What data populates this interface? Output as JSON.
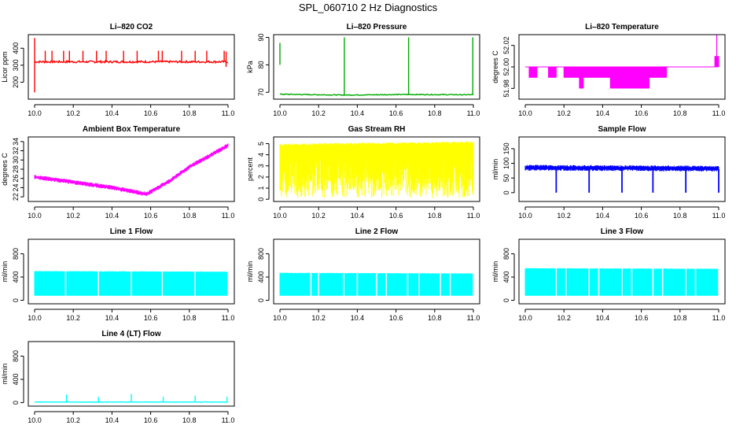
{
  "figure_title": "SPL_060710  2 Hz Diagnostics",
  "chart_data": [
    {
      "type": "line",
      "title": "Li–820 CO2",
      "ylabel": "Licor ppm",
      "color": "#ff0000",
      "xlim": [
        10.0,
        11.0
      ],
      "ylim": [
        100,
        480
      ],
      "xticks": [
        "10.0",
        "10.2",
        "10.4",
        "10.6",
        "10.8",
        "11.0"
      ],
      "yticks": [
        {
          "v": 200,
          "label": "200"
        },
        {
          "v": 300,
          "label": "300"
        },
        {
          "v": 400,
          "label": "400"
        }
      ],
      "series": [
        {
          "name": "CO2",
          "style": "noisy",
          "base": [
            [
              10.0,
              320
            ],
            [
              11.0,
              320
            ]
          ],
          "noise": 6,
          "spikes": [
            [
              10.0,
              460,
              140
            ],
            [
              10.055,
              385,
              320
            ],
            [
              10.09,
              385,
              320
            ],
            [
              10.15,
              385,
              320
            ],
            [
              10.18,
              385,
              320
            ],
            [
              10.25,
              385,
              320
            ],
            [
              10.32,
              385,
              320
            ],
            [
              10.37,
              385,
              320
            ],
            [
              10.46,
              385,
              320
            ],
            [
              10.53,
              385,
              320
            ],
            [
              10.64,
              385,
              320
            ],
            [
              10.66,
              385,
              320
            ],
            [
              10.76,
              385,
              320
            ],
            [
              10.83,
              385,
              320
            ],
            [
              10.89,
              385,
              320
            ],
            [
              10.98,
              385,
              320
            ],
            [
              10.99,
              380,
              290
            ]
          ]
        }
      ]
    },
    {
      "type": "line",
      "title": "Li–820 Pressure",
      "ylabel": "kPa",
      "color": "#00aa00",
      "xlim": [
        10.0,
        11.0
      ],
      "ylim": [
        67.5,
        91
      ],
      "xticks": [
        "10.0",
        "10.2",
        "10.4",
        "10.6",
        "10.8",
        "11.0"
      ],
      "yticks": [
        {
          "v": 70,
          "label": "70"
        },
        {
          "v": 80,
          "label": "80"
        },
        {
          "v": 90,
          "label": "90"
        }
      ],
      "series": [
        {
          "name": "Pressure",
          "style": "noisy",
          "base": [
            [
              10.0,
              69.3
            ],
            [
              10.33,
              69.0
            ],
            [
              10.66,
              69.2
            ],
            [
              11.0,
              69.1
            ]
          ],
          "noise": 0.15,
          "spikes": [
            [
              10.0,
              88,
              80
            ],
            [
              10.333,
              90,
              69
            ],
            [
              10.665,
              90,
              69
            ],
            [
              10.997,
              90,
              69
            ]
          ]
        }
      ]
    },
    {
      "type": "line",
      "title": "Li–820 Temperature",
      "ylabel": "degrees C",
      "color": "#ff00ff",
      "xlim": [
        10.0,
        11.0
      ],
      "ylim": [
        51.97,
        52.03
      ],
      "xticks": [
        "10.0",
        "10.2",
        "10.4",
        "10.6",
        "10.8",
        "11.0"
      ],
      "yticks": [
        {
          "v": 51.98,
          "label": "51.98"
        },
        {
          "v": 52.0,
          "label": "52.00"
        },
        {
          "v": 52.02,
          "label": "52.02"
        }
      ],
      "series": [
        {
          "name": "Temperature",
          "style": "steps",
          "base": [
            [
              10.0,
              52.0
            ],
            [
              11.0,
              52.0
            ]
          ],
          "bands": [
            [
              10.02,
              10.06,
              51.99
            ],
            [
              10.12,
              10.16,
              51.99
            ],
            [
              10.2,
              10.28,
              51.99
            ],
            [
              10.28,
              10.3,
              51.98
            ],
            [
              10.3,
              10.6,
              51.99
            ],
            [
              10.44,
              10.64,
              51.98
            ],
            [
              10.6,
              10.73,
              51.99
            ],
            [
              10.98,
              11.0,
              52.01
            ]
          ],
          "spikes": [
            [
              10.99,
              52.03,
              52.0
            ]
          ]
        }
      ]
    },
    {
      "type": "line",
      "title": "Ambient Box Temperature",
      "ylabel": "degrees C",
      "color": "#ff00ff",
      "xlim": [
        10.0,
        11.0
      ],
      "ylim": [
        21,
        35
      ],
      "xticks": [
        "10.0",
        "10.2",
        "10.4",
        "10.6",
        "10.8",
        "11.0"
      ],
      "yticks": [
        {
          "v": 22,
          "label": "22"
        },
        {
          "v": 24,
          "label": "24"
        },
        {
          "v": 26,
          "label": "26"
        },
        {
          "v": 28,
          "label": "28"
        },
        {
          "v": 30,
          "label": "30"
        },
        {
          "v": 32,
          "label": "32"
        },
        {
          "v": 34,
          "label": "34"
        }
      ],
      "series": [
        {
          "name": "Box Temp",
          "style": "band",
          "base": [
            [
              10.0,
              26.3
            ],
            [
              10.2,
              25.2
            ],
            [
              10.4,
              24.0
            ],
            [
              10.58,
              22.6
            ],
            [
              10.7,
              25.5
            ],
            [
              10.8,
              28.5
            ],
            [
              10.9,
              30.8
            ],
            [
              11.0,
              33.2
            ]
          ],
          "upper": 0.5,
          "lower": 0.5,
          "spikes": []
        }
      ]
    },
    {
      "type": "line",
      "title": "Gas Stream RH",
      "ylabel": "percent",
      "color": "#ffff00",
      "xlim": [
        10.0,
        11.0
      ],
      "ylim": [
        -0.2,
        5.6
      ],
      "xticks": [
        "10.0",
        "10.2",
        "10.4",
        "10.6",
        "10.8",
        "11.0"
      ],
      "yticks": [
        {
          "v": 0,
          "label": "0"
        },
        {
          "v": 1,
          "label": "1"
        },
        {
          "v": 2,
          "label": "2"
        },
        {
          "v": 3,
          "label": "3"
        },
        {
          "v": 4,
          "label": "4"
        },
        {
          "v": 5,
          "label": "5"
        }
      ],
      "series": [
        {
          "name": "RH",
          "style": "hash",
          "base": [
            [
              10.0,
              4.9
            ],
            [
              11.0,
              5.1
            ]
          ],
          "low": 0.8,
          "spikes": []
        }
      ]
    },
    {
      "type": "line",
      "title": "Sample Flow",
      "ylabel": "ml/min",
      "color": "#0000ff",
      "xlim": [
        10.0,
        11.0
      ],
      "ylim": [
        -30,
        190
      ],
      "xticks": [
        "10.0",
        "10.2",
        "10.4",
        "10.6",
        "10.8",
        "11.0"
      ],
      "yticks": [
        {
          "v": 0,
          "label": "0"
        },
        {
          "v": 50,
          "label": "50"
        },
        {
          "v": 100,
          "label": "100"
        },
        {
          "v": 150,
          "label": "150"
        }
      ],
      "series": [
        {
          "name": "Sample Flow",
          "style": "band",
          "base": [
            [
              10.0,
              85
            ],
            [
              11.0,
              82
            ]
          ],
          "upper": 10,
          "lower": 10,
          "spikes": [
            [
              10.16,
              80,
              0
            ],
            [
              10.33,
              80,
              0
            ],
            [
              10.5,
              80,
              0
            ],
            [
              10.66,
              80,
              0
            ],
            [
              10.83,
              80,
              0
            ],
            [
              11.0,
              80,
              0
            ]
          ]
        }
      ]
    },
    {
      "type": "line",
      "title": "Line 1 Flow",
      "ylabel": "ml/min",
      "color": "#00ffff",
      "xlim": [
        10.0,
        11.0
      ],
      "ylim": [
        -60,
        1050
      ],
      "xticks": [
        "10.0",
        "10.2",
        "10.4",
        "10.6",
        "10.8",
        "11.0"
      ],
      "yticks": [
        {
          "v": 0,
          "label": "0"
        },
        {
          "v": 400,
          "label": "400"
        },
        {
          "v": 800,
          "label": "800"
        }
      ],
      "series": [
        {
          "name": "Line 1",
          "style": "block",
          "base": [
            [
              10.0,
              500
            ],
            [
              11.0,
              490
            ]
          ],
          "low": 80,
          "gaps": [
            10.16,
            10.33,
            10.5,
            10.66,
            10.83,
            11.0
          ]
        }
      ]
    },
    {
      "type": "line",
      "title": "Line 2 Flow",
      "ylabel": "ml/min",
      "color": "#00ffff",
      "xlim": [
        10.0,
        11.0
      ],
      "ylim": [
        -60,
        1050
      ],
      "xticks": [
        "10.0",
        "10.2",
        "10.4",
        "10.6",
        "10.8",
        "11.0"
      ],
      "yticks": [
        {
          "v": 0,
          "label": "0"
        },
        {
          "v": 400,
          "label": "400"
        },
        {
          "v": 800,
          "label": "800"
        }
      ],
      "series": [
        {
          "name": "Line 2",
          "style": "block",
          "base": [
            [
              10.0,
              470
            ],
            [
              11.0,
              460
            ]
          ],
          "low": 80,
          "gaps": [
            10.16,
            10.2,
            10.33,
            10.4,
            10.5,
            10.55,
            10.66,
            10.72,
            10.83,
            10.88,
            11.0
          ]
        }
      ]
    },
    {
      "type": "line",
      "title": "Line 3 Flow",
      "ylabel": "ml/min",
      "color": "#00ffff",
      "xlim": [
        10.0,
        11.0
      ],
      "ylim": [
        -60,
        1050
      ],
      "xticks": [
        "10.0",
        "10.2",
        "10.4",
        "10.6",
        "10.8",
        "11.0"
      ],
      "yticks": [
        {
          "v": 0,
          "label": "0"
        },
        {
          "v": 400,
          "label": "400"
        },
        {
          "v": 800,
          "label": "800"
        }
      ],
      "series": [
        {
          "name": "Line 3",
          "style": "block",
          "base": [
            [
              10.0,
              550
            ],
            [
              11.0,
              540
            ]
          ],
          "low": 80,
          "gaps": [
            10.16,
            10.21,
            10.33,
            10.38,
            10.5,
            10.55,
            10.66,
            10.71,
            10.83,
            10.88,
            11.0
          ]
        }
      ]
    },
    {
      "type": "line",
      "title": "Line 4 (LT) Flow",
      "ylabel": "ml/min",
      "color": "#00ffff",
      "xlim": [
        10.0,
        11.0
      ],
      "ylim": [
        -60,
        1050
      ],
      "xticks": [
        "10.0",
        "10.2",
        "10.4",
        "10.6",
        "10.8",
        "11.0"
      ],
      "yticks": [
        {
          "v": 0,
          "label": "0"
        },
        {
          "v": 400,
          "label": "400"
        },
        {
          "v": 800,
          "label": "800"
        }
      ],
      "series": [
        {
          "name": "Line 4",
          "style": "noisy",
          "base": [
            [
              10.0,
              10
            ],
            [
              11.0,
              10
            ]
          ],
          "noise": 3,
          "spikes": [
            [
              10.165,
              140,
              10
            ],
            [
              10.33,
              100,
              10
            ],
            [
              10.5,
              150,
              10
            ],
            [
              10.665,
              100,
              10
            ],
            [
              10.83,
              120,
              10
            ],
            [
              10.995,
              100,
              10
            ]
          ]
        }
      ]
    }
  ]
}
